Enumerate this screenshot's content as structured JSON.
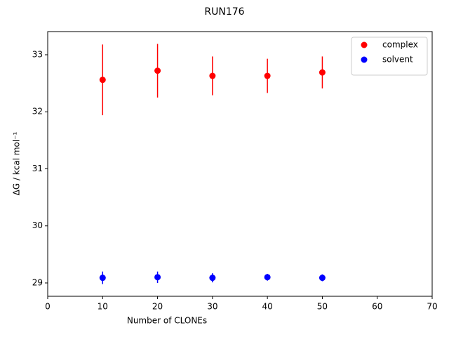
{
  "chart_data": {
    "type": "errorbar",
    "title": "RUN176",
    "xlabel": "Number of CLONEs",
    "ylabel": "ΔG / kcal mol⁻¹",
    "x": [
      10,
      20,
      30,
      40,
      50
    ],
    "series": [
      {
        "name": "complex",
        "color": "#ff0000",
        "values": [
          32.56,
          32.72,
          32.63,
          32.63,
          32.69
        ],
        "errors": [
          0.62,
          0.47,
          0.34,
          0.3,
          0.28
        ]
      },
      {
        "name": "solvent",
        "color": "#0000ff",
        "values": [
          29.09,
          29.1,
          29.09,
          29.1,
          29.09
        ],
        "errors": [
          0.11,
          0.1,
          0.08,
          0.06,
          0.06
        ]
      }
    ],
    "xlim": [
      0,
      70
    ],
    "xticks": [
      0,
      10,
      20,
      30,
      40,
      50,
      60,
      70
    ],
    "ylim": [
      28.766,
      33.406
    ],
    "yticks": [
      29,
      30,
      31,
      32,
      33
    ],
    "legend": "upper right"
  }
}
